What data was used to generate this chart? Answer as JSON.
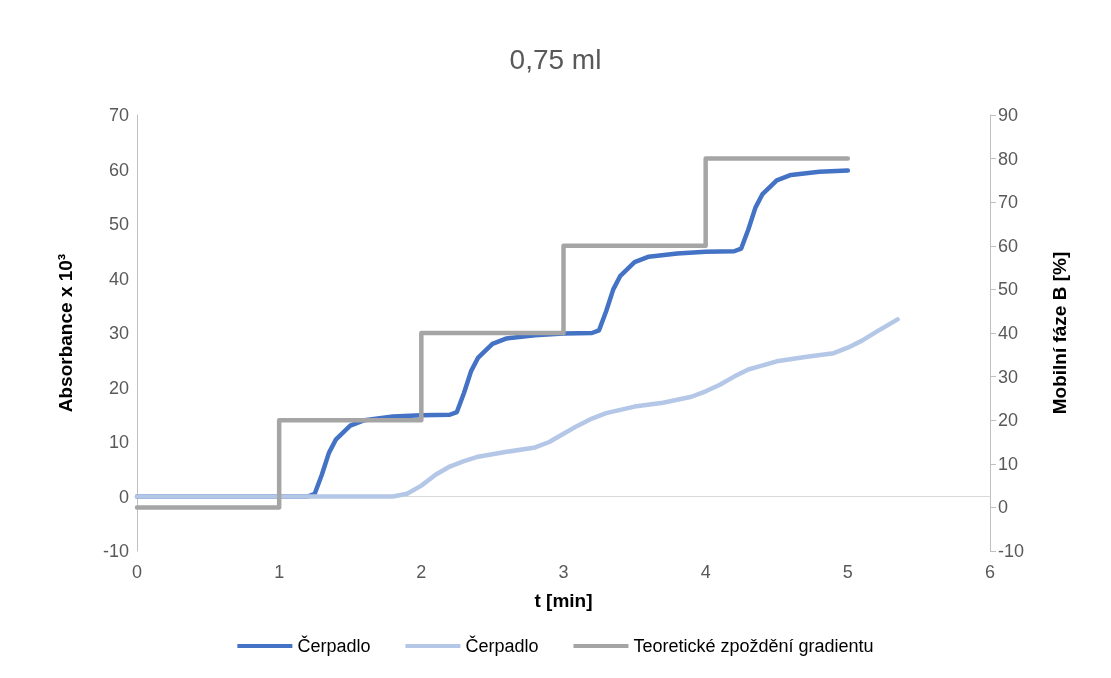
{
  "chart_data": {
    "type": "line",
    "title": "0,75 ml",
    "xlabel": "t [min]",
    "ylabel": "Absorbance x 10³",
    "y2label": "Mobilní fáze B [%]",
    "xlim": [
      0,
      6
    ],
    "xticks": [
      0,
      1,
      2,
      3,
      4,
      5,
      6
    ],
    "ylim": [
      -10,
      70
    ],
    "yticks": [
      -10,
      0,
      10,
      20,
      30,
      40,
      50,
      60,
      70
    ],
    "y2lim": [
      -10,
      90
    ],
    "y2ticks": [
      -10,
      0,
      10,
      20,
      30,
      40,
      50,
      60,
      70,
      80,
      90
    ],
    "legend": "bottom",
    "marker": "none",
    "line_style": "solid",
    "series": [
      {
        "name": "Čerpadlo",
        "color": "#4472c4",
        "x": [
          0,
          1.2,
          1.25,
          1.3,
          1.35,
          1.4,
          1.5,
          1.6,
          1.8,
          2.0,
          2.2,
          2.25,
          2.3,
          2.35,
          2.4,
          2.5,
          2.6,
          2.8,
          3.0,
          3.2,
          3.25,
          3.3,
          3.35,
          3.4,
          3.5,
          3.6,
          3.8,
          4.0,
          4.2,
          4.25,
          4.3,
          4.35,
          4.4,
          4.5,
          4.6,
          4.8,
          5.0
        ],
        "values": [
          0,
          0,
          0.5,
          4,
          8,
          10.5,
          13,
          14,
          14.7,
          14.9,
          15,
          15.5,
          19,
          23,
          25.5,
          28,
          29,
          29.6,
          29.9,
          30,
          30.5,
          34,
          38,
          40.5,
          43,
          44,
          44.6,
          44.9,
          45,
          45.5,
          49,
          53,
          55.5,
          58,
          59,
          59.6,
          59.8
        ]
      },
      {
        "name": "Čerpadlo",
        "color": "#b4c7e7",
        "x": [
          0,
          1.5,
          1.8,
          1.9,
          2.0,
          2.1,
          2.2,
          2.3,
          2.4,
          2.6,
          2.8,
          2.9,
          3.0,
          3.1,
          3.2,
          3.3,
          3.5,
          3.7,
          3.9,
          4.0,
          4.1,
          4.2,
          4.3,
          4.5,
          4.7,
          4.9,
          5.0,
          5.1,
          5.2,
          5.35
        ],
        "values": [
          0,
          0,
          0,
          0.5,
          2,
          4,
          5.5,
          6.5,
          7.3,
          8.2,
          9,
          10,
          11.5,
          13,
          14.3,
          15.3,
          16.5,
          17.2,
          18.3,
          19.3,
          20.5,
          22,
          23.3,
          24.8,
          25.6,
          26.3,
          27.3,
          28.6,
          30.2,
          32.5
        ]
      },
      {
        "name": "Teoretické zpoždění gradientu",
        "type": "step",
        "axis": "y2",
        "color": "#a5a5a5",
        "x": [
          0,
          1,
          2,
          3,
          4,
          5
        ],
        "values": [
          0,
          20,
          40,
          60,
          80,
          80
        ]
      }
    ]
  }
}
